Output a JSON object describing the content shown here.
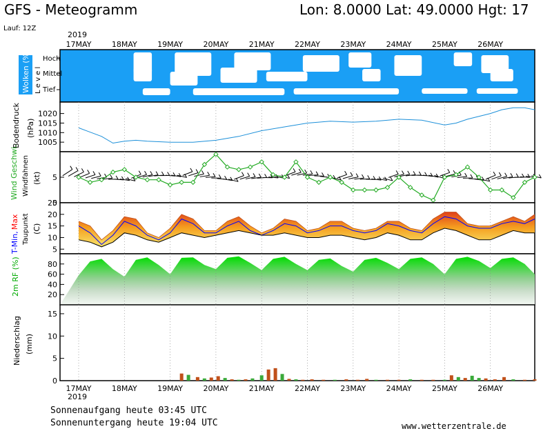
{
  "header": {
    "title": "GFS - Meteogramm",
    "location": "Lon: 8.0000  Lat: 49.0000  Hgt: 17",
    "run": "Lauf: 12Z",
    "year": "2019"
  },
  "footer": {
    "sunrise": "Sonnenaufgang heute 03:45 UTC",
    "sunset": "Sonnenuntergang heute 19:04 UTC",
    "website": "www.wetterzentrale.de"
  },
  "colors": {
    "cloud_sky": "#1a9ff5",
    "pressure": "#1b8fd9",
    "wind_speed": "#22aa22",
    "tmin": "#0000ff",
    "tmax": "#ff0000",
    "humidity": "#00cc00",
    "precip_rain": "#c0501a",
    "precip_shower": "#3aa93a"
  },
  "chart_data": {
    "dates": [
      "17MAY",
      "18MAY",
      "19MAY",
      "20MAY",
      "21MAY",
      "22MAY",
      "23MAY",
      "24MAY",
      "25MAY",
      "26MAY"
    ],
    "panels": {
      "clouds": {
        "label": "Wolken (%)",
        "sublabel": "L e v e l",
        "levels": [
          "Hoch",
          "Mittel",
          "Tief"
        ]
      },
      "pressure": {
        "type": "line",
        "label": "Bodendruck",
        "unit": "(hPa)",
        "ylim": [
          1000,
          1026
        ],
        "ticks": [
          1005,
          1010,
          1015,
          1020
        ],
        "x": [
          0,
          0.5,
          0.75,
          1,
          1.25,
          1.5,
          2,
          2.5,
          3,
          3.5,
          4,
          4.5,
          5,
          5.5,
          6,
          6.5,
          7,
          7.5,
          8,
          8.25,
          8.5,
          9,
          9.25,
          9.5,
          9.75,
          10
        ],
        "values": [
          1012.5,
          1008,
          1004.5,
          1005.5,
          1006,
          1005.5,
          1005,
          1005,
          1006,
          1008,
          1011,
          1013,
          1015,
          1016,
          1015.5,
          1016,
          1017,
          1016.5,
          1014,
          1015,
          1017,
          1020,
          1022,
          1023,
          1023,
          1022
        ]
      },
      "wind": {
        "type": "line",
        "label": "Wind Geschwi.",
        "sublabel": "Windfahnen",
        "unit": "(kt)",
        "ylim": [
          0,
          10
        ],
        "ticks": [
          0,
          5
        ],
        "x": [
          0,
          0.25,
          0.5,
          0.75,
          1,
          1.25,
          1.5,
          1.75,
          2,
          2.25,
          2.5,
          2.75,
          3,
          3.25,
          3.5,
          3.75,
          4,
          4.25,
          4.5,
          4.75,
          5,
          5.25,
          5.5,
          5.75,
          6,
          6.25,
          6.5,
          6.75,
          7,
          7.25,
          7.5,
          7.75,
          8,
          8.25,
          8.5,
          8.75,
          9,
          9.25,
          9.5,
          9.75,
          10
        ],
        "values": [
          5,
          4,
          4.5,
          6,
          6.5,
          5,
          4.5,
          4.5,
          3.5,
          4,
          4,
          7.5,
          9.5,
          7,
          6.5,
          7,
          8,
          5.5,
          5,
          8,
          5,
          4,
          5,
          4,
          2.5,
          2.5,
          2.5,
          3,
          5,
          3,
          1.5,
          0.5,
          5,
          5.5,
          7,
          5,
          2.5,
          2.5,
          1,
          4,
          5
        ]
      },
      "temperature": {
        "type": "area",
        "label_tmin": "T-Min,",
        "label_tmax": "Max",
        "label_dew": "Taupunkt",
        "unit": "(C)",
        "ylim": [
          3,
          25
        ],
        "ticks": [
          5,
          10,
          15,
          20,
          25
        ],
        "x": [
          0,
          0.25,
          0.5,
          0.75,
          1,
          1.25,
          1.5,
          1.75,
          2,
          2.25,
          2.5,
          2.75,
          3,
          3.25,
          3.5,
          3.75,
          4,
          4.25,
          4.5,
          4.75,
          5,
          5.25,
          5.5,
          5.75,
          6,
          6.25,
          6.5,
          6.75,
          7,
          7.25,
          7.5,
          7.75,
          8,
          8.25,
          8.5,
          8.75,
          9,
          9.25,
          9.5,
          9.75,
          10
        ],
        "tmax": [
          17,
          15,
          9,
          13,
          19,
          18,
          12,
          10,
          14,
          20,
          18,
          13,
          13,
          17,
          19,
          15,
          12,
          14,
          18,
          17,
          13,
          14,
          17,
          17,
          14,
          13,
          14,
          17,
          17,
          14,
          13,
          18,
          21,
          21,
          16,
          15,
          15,
          17,
          19,
          17,
          20
        ],
        "tmin": [
          15,
          12,
          7,
          11,
          17,
          15,
          11,
          9,
          12,
          18,
          16,
          12,
          12,
          15,
          17,
          13,
          11,
          13,
          16,
          15,
          12,
          13,
          15,
          15,
          13,
          12,
          13,
          16,
          15,
          13,
          12,
          16,
          19,
          18,
          15,
          14,
          14,
          16,
          17,
          16,
          18
        ],
        "dewpoint": [
          9,
          8,
          6,
          8,
          12,
          11,
          9,
          8,
          10,
          12,
          11,
          10,
          11,
          12,
          13,
          12,
          11,
          11,
          12,
          11,
          10,
          10,
          11,
          11,
          10,
          9,
          10,
          12,
          11,
          9,
          9,
          12,
          14,
          13,
          11,
          9,
          9,
          11,
          13,
          12,
          12
        ]
      },
      "humidity": {
        "type": "area",
        "label": "2m RF (%)",
        "ylim": [
          0,
          100
        ],
        "ticks": [
          20,
          40,
          60,
          80
        ],
        "x": [
          0,
          0.25,
          0.5,
          0.75,
          1,
          1.25,
          1.5,
          1.75,
          2,
          2.25,
          2.5,
          2.75,
          3,
          3.25,
          3.5,
          3.75,
          4,
          4.25,
          4.5,
          4.75,
          5,
          5.25,
          5.5,
          5.75,
          6,
          6.25,
          6.5,
          6.75,
          7,
          7.25,
          7.5,
          7.75,
          8,
          8.25,
          8.5,
          8.75,
          9,
          9.25,
          9.5,
          9.75,
          10
        ],
        "values": [
          58,
          85,
          90,
          70,
          55,
          88,
          93,
          78,
          60,
          92,
          93,
          78,
          70,
          92,
          95,
          82,
          68,
          90,
          94,
          80,
          68,
          88,
          91,
          76,
          65,
          88,
          92,
          82,
          70,
          90,
          93,
          80,
          60,
          90,
          94,
          86,
          72,
          90,
          93,
          80,
          60
        ]
      },
      "precip": {
        "type": "bar",
        "label": "Niederschlag",
        "unit": "(mm)",
        "ylim": [
          0,
          17
        ],
        "ticks": [
          0,
          5,
          10,
          15
        ],
        "x": [
          2.25,
          2.4,
          2.6,
          2.75,
          2.9,
          3.05,
          3.2,
          3.35,
          3.5,
          3.65,
          3.8,
          4.0,
          4.15,
          4.3,
          4.45,
          4.6,
          4.75,
          4.9,
          5.1,
          5.35,
          5.6,
          5.85,
          6.1,
          6.3,
          6.5,
          6.75,
          7.0,
          7.25,
          7.5,
          7.75,
          8.0,
          8.15,
          8.3,
          8.45,
          8.6,
          8.75,
          8.9,
          9.1,
          9.3,
          9.5,
          9.75,
          10.0
        ],
        "values": [
          1.6,
          1.3,
          0.8,
          0.5,
          0.7,
          1.0,
          0.6,
          0.3,
          0.2,
          0.3,
          0.5,
          1.2,
          2.5,
          2.8,
          1.5,
          0.4,
          0.3,
          0.2,
          0.3,
          0.2,
          0.2,
          0.3,
          0.2,
          0.4,
          0.2,
          0.2,
          0.2,
          0.3,
          0.2,
          0.2,
          0.2,
          1.2,
          0.8,
          0.6,
          1.1,
          0.6,
          0.5,
          0.3,
          0.8,
          0.3,
          0.2,
          0.3
        ],
        "kind": [
          "r",
          "s",
          "r",
          "s",
          "r",
          "r",
          "s",
          "r",
          "s",
          "r",
          "s",
          "s",
          "r",
          "r",
          "s",
          "r",
          "s",
          "r",
          "r",
          "r",
          "s",
          "r",
          "r",
          "r",
          "s",
          "r",
          "r",
          "s",
          "r",
          "r",
          "s",
          "r",
          "s",
          "r",
          "s",
          "s",
          "r",
          "r",
          "r",
          "s",
          "r",
          "r"
        ]
      }
    }
  }
}
